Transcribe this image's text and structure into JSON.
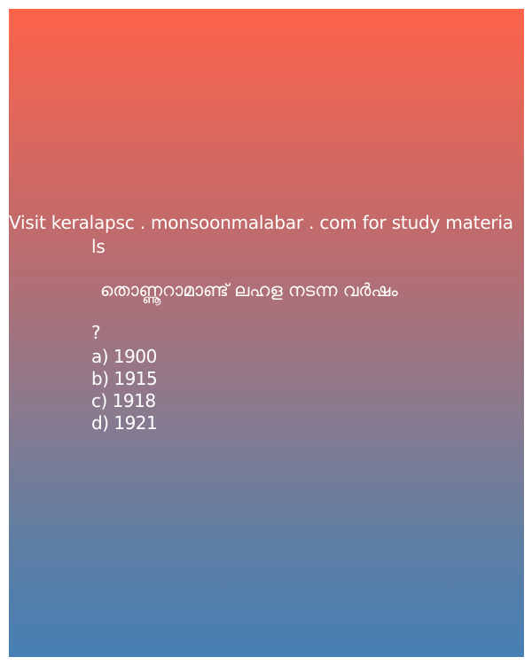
{
  "promo": {
    "line1": "Visit keralapsc . monsoonmalabar . com for study materia",
    "line2": "ls"
  },
  "question": {
    "text": "തൊണ്ണൂറാമാണ്ട് ലഹള നടന്ന വർഷം",
    "mark": "?"
  },
  "options": [
    "a) 1900",
    "b) 1915",
    "c) 1918",
    "d) 1921"
  ],
  "colors": {
    "gradient_top": "#fe634a",
    "gradient_bottom": "#467fb4",
    "text": "#ffffff"
  }
}
